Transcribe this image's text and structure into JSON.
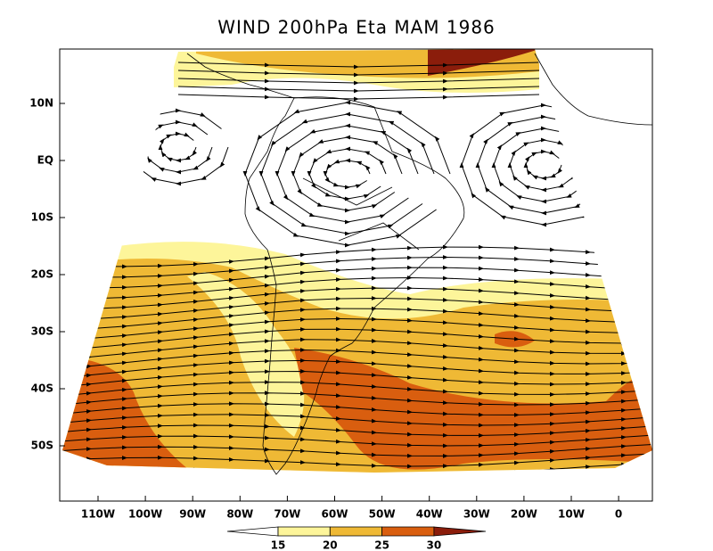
{
  "title": "WIND 200hPa Eta MAM 1986",
  "lat_labels": [
    "10N",
    "EQ",
    "10S",
    "20S",
    "30S",
    "40S",
    "50S"
  ],
  "lon_labels": [
    "110W",
    "100W",
    "90W",
    "80W",
    "70W",
    "60W",
    "50W",
    "40W",
    "30W",
    "20W",
    "10W",
    "0"
  ],
  "colorbar": {
    "levels": [
      15,
      20,
      25,
      30
    ],
    "colors": [
      "#ffffff",
      "#fdf59a",
      "#efb935",
      "#d95e0f",
      "#8b1d0b"
    ]
  }
}
